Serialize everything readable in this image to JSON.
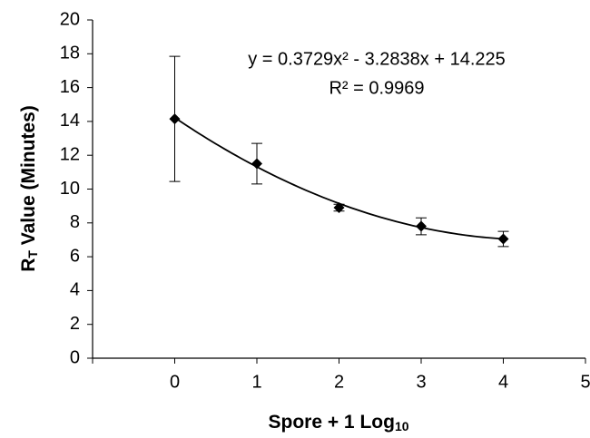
{
  "chart_data": {
    "type": "scatter",
    "xlabel": {
      "text": "Spore + 1 Log",
      "sub": "10"
    },
    "ylabel": {
      "text": "R",
      "sub": "T",
      "rest": " Value (Minutes)"
    },
    "x": [
      0,
      1,
      2,
      3,
      4
    ],
    "series": [
      {
        "color": "#000000",
        "values": [
          14.15,
          11.5,
          8.9,
          7.8,
          7.05
        ],
        "errors": [
          3.7,
          1.2,
          0.2,
          0.5,
          0.45
        ]
      }
    ],
    "trendline": {
      "coefficients": [
        0.3729,
        -3.2838,
        14.225
      ],
      "equation": "y = 0.3729x² - 3.2838x + 14.225",
      "r2": "R² = 0.9969"
    },
    "xlim": [
      -1,
      5
    ],
    "xticks": [
      0,
      1,
      2,
      3,
      4,
      5
    ],
    "ylim": [
      0,
      20
    ],
    "yticks": [
      0,
      2,
      4,
      6,
      8,
      10,
      12,
      14,
      16,
      18,
      20
    ]
  }
}
